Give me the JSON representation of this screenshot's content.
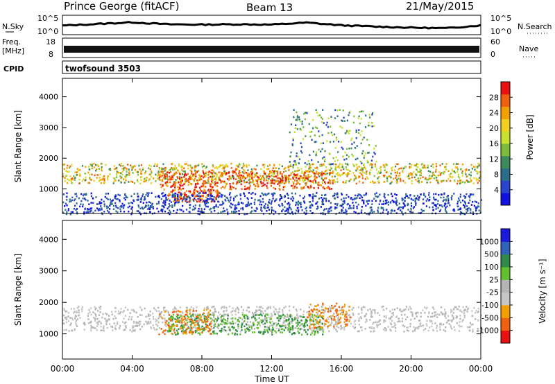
{
  "header": {
    "station": "Prince George (fitACF)",
    "beam": "Beam 13",
    "date": "21/May/2015"
  },
  "noise_panel": {
    "left_label": "N.Sky",
    "right_label": "N.Search",
    "left_ticks": [
      "10^5",
      "10^0"
    ],
    "right_ticks": [
      "10^5",
      "10^0"
    ]
  },
  "freq_panel": {
    "left_label_1": "Freq.",
    "left_label_2": "[MHz]",
    "right_label": "Nave",
    "left_ticks": [
      "18",
      "8"
    ],
    "right_ticks": [
      "60",
      "0"
    ]
  },
  "cpid": {
    "label": "CPID",
    "value": "twofsound 3503"
  },
  "colors": {
    "power_scale": [
      "#1010e0",
      "#2a44d0",
      "#2c6e8a",
      "#3f8a5a",
      "#7cbc38",
      "#c8e030",
      "#f0d020",
      "#f0a000",
      "#f06010",
      "#e81010"
    ],
    "velocity_scale": [
      "#1a1adc",
      "#2f62b8",
      "#2e8a46",
      "#62c030",
      "#b4b4b4",
      "#c6c6c6",
      "#f0a000",
      "#f06010",
      "#e81010"
    ]
  },
  "chart_data": [
    {
      "type": "line",
      "title": "Prince George (fitACF)",
      "series": [
        {
          "name": "N.Sky",
          "x": [
            "00:00",
            "02:00",
            "04:00",
            "06:00",
            "08:00",
            "10:00",
            "12:00",
            "14:00",
            "16:00",
            "18:00",
            "20:00",
            "22:00",
            "24:00"
          ],
          "values_log10": [
            2.3,
            2.8,
            3.3,
            2.7,
            2.6,
            2.7,
            2.6,
            3.2,
            2.4,
            2.0,
            1.7,
            1.5,
            2.4
          ]
        }
      ],
      "ylim_log10": [
        0,
        5
      ]
    },
    {
      "type": "heatmap",
      "ylabel": "Slant Range [km]",
      "xlabel": "Time UT",
      "x_ticks": [
        "00:00",
        "04:00",
        "08:00",
        "12:00",
        "16:00",
        "20:00",
        "00:00"
      ],
      "xlim_hours": [
        0,
        24
      ],
      "y_ticks": [
        1000,
        2000,
        3000,
        4000
      ],
      "ylim": [
        200,
        4600
      ],
      "colorbar": {
        "label": "Power [dB]",
        "ticks": [
          4,
          8,
          12,
          16,
          20,
          24,
          28
        ]
      },
      "bands": [
        {
          "t": [
            0,
            24
          ],
          "r": [
            1200,
            1850
          ],
          "level": "medium-high"
        },
        {
          "t": [
            5.5,
            15.5
          ],
          "r": [
            1000,
            1600
          ],
          "level": "high"
        },
        {
          "t": [
            6,
            9
          ],
          "r": [
            600,
            1000
          ],
          "level": "high"
        },
        {
          "t": [
            0,
            24
          ],
          "r": [
            200,
            900
          ],
          "level": "low"
        },
        {
          "t": [
            13,
            18
          ],
          "r": [
            1800,
            3600
          ],
          "level": "low-medium"
        }
      ]
    },
    {
      "type": "heatmap",
      "ylabel": "Slant Range [km]",
      "xlabel": "Time UT",
      "x_ticks": [
        "00:00",
        "04:00",
        "08:00",
        "12:00",
        "16:00",
        "20:00",
        "00:00"
      ],
      "xlim_hours": [
        0,
        24
      ],
      "y_ticks": [
        1000,
        2000,
        3000,
        4000
      ],
      "ylim": [
        200,
        4600
      ],
      "colorbar": {
        "label": "Velocity [m s⁻¹]",
        "ticks": [
          1000,
          500,
          100,
          25,
          -25,
          -100,
          -500,
          -1000
        ]
      },
      "bands": [
        {
          "t": [
            0,
            24
          ],
          "r": [
            1100,
            1900
          ],
          "level": "ground-scatter"
        },
        {
          "t": [
            6,
            15
          ],
          "r": [
            1000,
            1650
          ],
          "level": "positive-100-500"
        },
        {
          "t": [
            5.5,
            8.5
          ],
          "r": [
            1000,
            1800
          ],
          "level": "negative-100-500"
        },
        {
          "t": [
            14,
            16.5
          ],
          "r": [
            1200,
            2000
          ],
          "level": "negative-100-500"
        }
      ]
    }
  ]
}
